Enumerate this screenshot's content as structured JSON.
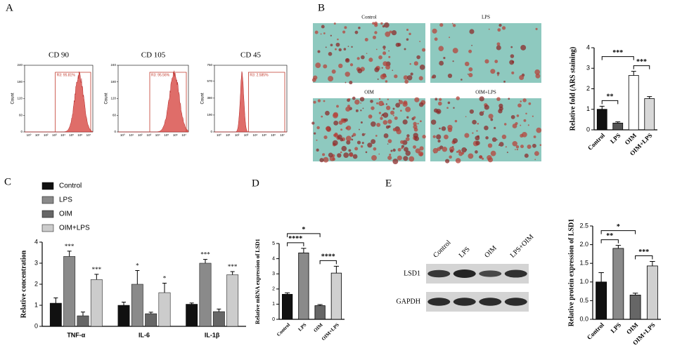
{
  "panel_labels": [
    "A",
    "B",
    "C",
    "D",
    "E"
  ],
  "flow_cytometry": {
    "ylabel": "Count",
    "xticks": [
      "10⁰",
      "10¹",
      "10²",
      "10³",
      "10⁴",
      "10⁵",
      "10⁶",
      "10⁷"
    ],
    "plots": [
      {
        "title": "CD 90",
        "gate": "R3: 95.81%",
        "yticks": [
          0,
          60,
          120,
          180,
          240
        ]
      },
      {
        "title": "CD 105",
        "gate": "R3: 95.56%",
        "yticks": [
          0,
          60,
          120,
          180,
          240
        ]
      },
      {
        "title": "CD 45",
        "gate": "R3: 2.585%",
        "yticks": [
          0,
          190,
          380,
          570,
          750
        ]
      }
    ]
  },
  "staining_images": {
    "labels": [
      "Control",
      "LPS",
      "OIM",
      "OIM+LPS"
    ]
  },
  "western_blot": {
    "lanes": [
      "Control",
      "LPS",
      "OIM",
      "LPS+OIM"
    ],
    "proteins": [
      "LSD1",
      "GAPDH"
    ]
  },
  "chart_data": [
    {
      "type": "bar",
      "ylabel": "Relative fold (ARS staining)",
      "categories": [
        "Control",
        "LPS",
        "OIM",
        "OIM+LPS"
      ],
      "values": [
        1.0,
        0.33,
        2.65,
        1.52
      ],
      "errors": [
        0.15,
        0.06,
        0.2,
        0.1
      ],
      "colors": [
        "#111111",
        "#555555",
        "#ffffff",
        "#d8d8d8"
      ],
      "ylim": [
        0,
        4
      ],
      "yticks": [
        0,
        1,
        2,
        3,
        4
      ],
      "comparisons": [
        {
          "label": "**",
          "between": [
            "Control",
            "LPS"
          ]
        },
        {
          "label": "***",
          "between": [
            "OIM",
            "OIM+LPS"
          ]
        },
        {
          "label": "***",
          "between": [
            "Control",
            "OIM"
          ]
        }
      ]
    },
    {
      "type": "bar",
      "ylabel": "Relative concentration",
      "categories": [
        "TNF-α",
        "IL-6",
        "IL-1β"
      ],
      "series": [
        {
          "name": "Control",
          "color": "#111111",
          "values": [
            1.1,
            1.0,
            1.05
          ],
          "errors": [
            0.25,
            0.15,
            0.06
          ]
        },
        {
          "name": "LPS",
          "color": "#8a8a8a",
          "values": [
            3.32,
            2.0,
            3.0
          ],
          "errors": [
            0.25,
            0.65,
            0.18
          ],
          "annotations": [
            "***",
            "*",
            "***"
          ]
        },
        {
          "name": "OIM",
          "color": "#666666",
          "values": [
            0.5,
            0.6,
            0.7
          ],
          "errors": [
            0.18,
            0.07,
            0.12
          ]
        },
        {
          "name": "OIM+LPS",
          "color": "#cccccc",
          "values": [
            2.22,
            1.6,
            2.45
          ],
          "errors": [
            0.25,
            0.45,
            0.15
          ],
          "annotations": [
            "***",
            "*",
            "***"
          ]
        }
      ],
      "ylim": [
        0,
        4
      ],
      "yticks": [
        0,
        1,
        2,
        3,
        4
      ]
    },
    {
      "type": "bar",
      "ylabel": "Relative mRNA expression of LSD1",
      "categories": [
        "Control",
        "LPS",
        "OIM",
        "OIM+LPS"
      ],
      "values": [
        1.65,
        4.38,
        0.9,
        3.05
      ],
      "errors": [
        0.1,
        0.3,
        0.07,
        0.45
      ],
      "colors": [
        "#111111",
        "#8a8a8a",
        "#666666",
        "#d0d0d0"
      ],
      "ylim": [
        0,
        5
      ],
      "yticks": [
        0,
        1,
        2,
        3,
        4,
        5
      ],
      "comparisons": [
        {
          "label": "****",
          "between": [
            "Control",
            "LPS"
          ]
        },
        {
          "label": "****",
          "between": [
            "OIM",
            "OIM+LPS"
          ]
        },
        {
          "label": "*",
          "between": [
            "Control",
            "OIM"
          ]
        }
      ]
    },
    {
      "type": "bar",
      "ylabel": "Relative protein expression of LSD1",
      "categories": [
        "Control",
        "LPS",
        "OIM",
        "OIM+LPS"
      ],
      "values": [
        1.0,
        1.9,
        0.65,
        1.43
      ],
      "errors": [
        0.25,
        0.08,
        0.05,
        0.12
      ],
      "colors": [
        "#111111",
        "#8a8a8a",
        "#666666",
        "#d0d0d0"
      ],
      "ylim": [
        0,
        2.5
      ],
      "yticks": [
        {
          "value": 0,
          "label": "0.0"
        },
        0.5,
        {
          "value": 1,
          "label": "1.0"
        },
        1.5,
        {
          "value": 2,
          "label": "2.0"
        },
        2.5
      ],
      "comparisons": [
        {
          "label": "**",
          "between": [
            "Control",
            "LPS"
          ]
        },
        {
          "label": "***",
          "between": [
            "OIM",
            "OIM+LPS"
          ]
        },
        {
          "label": "*",
          "between": [
            "Control",
            "OIM"
          ]
        }
      ]
    }
  ]
}
